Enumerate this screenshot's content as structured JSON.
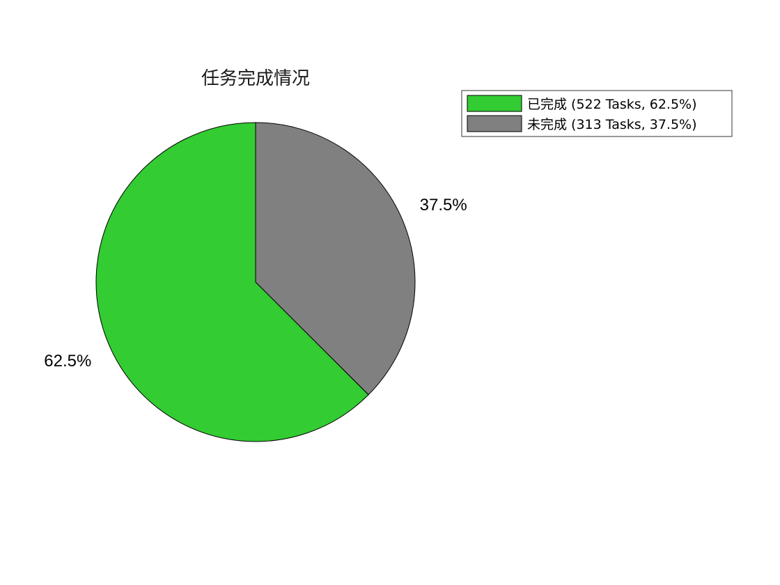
{
  "chart_data": {
    "type": "pie",
    "title": "任务完成情况",
    "slices": [
      {
        "label": "已完成",
        "value": 522,
        "percent": 62.5,
        "percent_label": "62.5%",
        "legend": "已完成 (522 Tasks, 62.5%)",
        "color": "#33CC33"
      },
      {
        "label": "未完成",
        "value": 313,
        "percent": 37.5,
        "percent_label": "37.5%",
        "legend": "未完成 (313 Tasks, 37.5%)",
        "color": "#808080"
      }
    ],
    "start_angle": "12 o'clock",
    "direction": "counterclockwise",
    "legend_position": "top-right",
    "edge_color": "#000000",
    "background": "#FFFFFF"
  }
}
